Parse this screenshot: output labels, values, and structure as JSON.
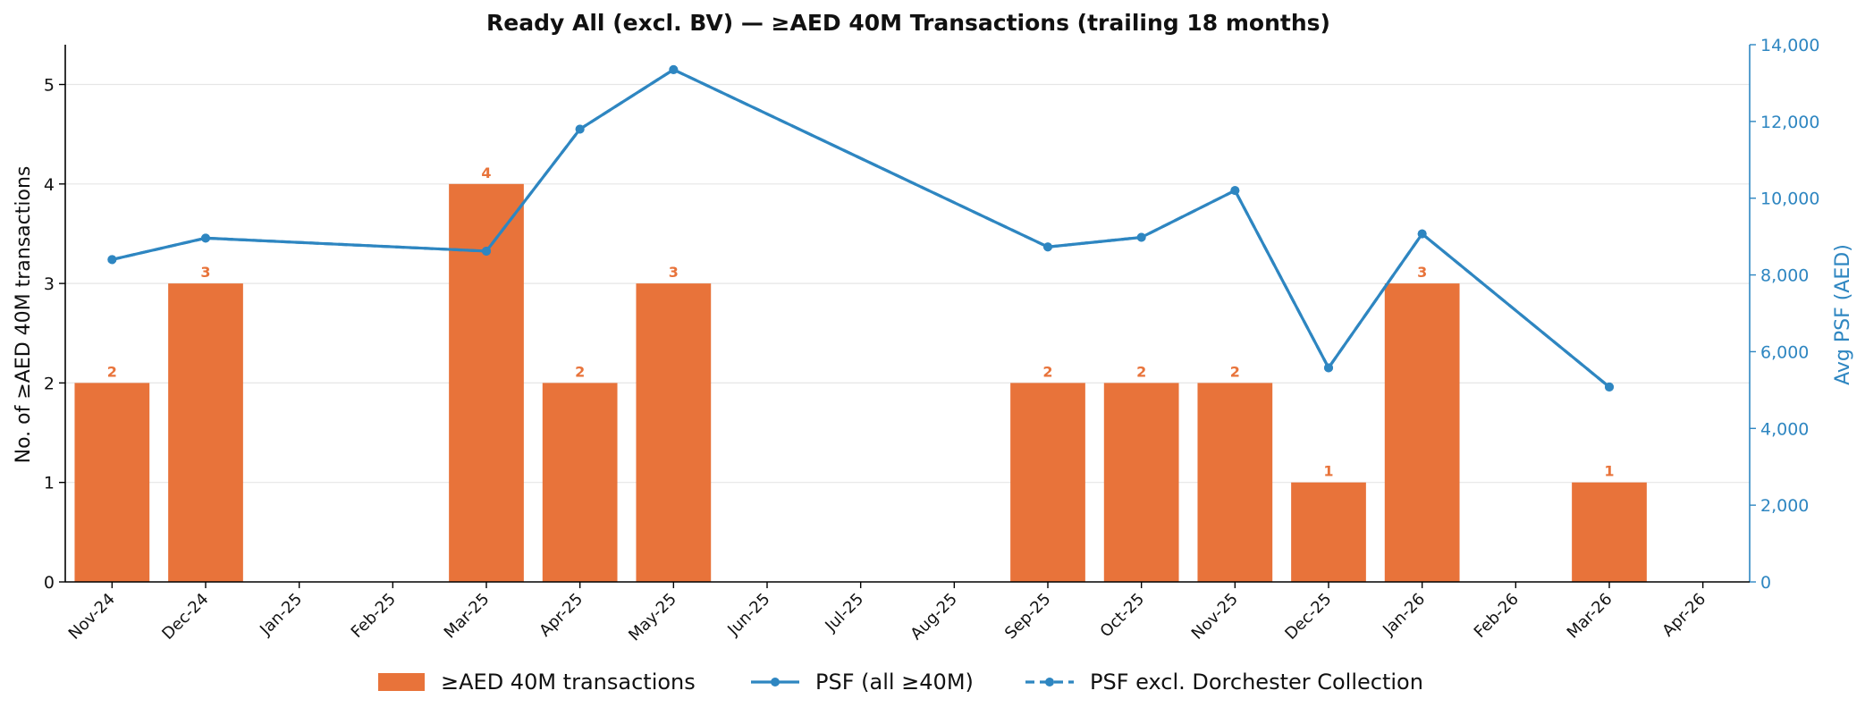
{
  "chart_data": {
    "type": "bar+line",
    "title": "Ready All (excl. BV) — ≥AED 40M Transactions (trailing 18 months)",
    "categories": [
      "Nov-24",
      "Dec-24",
      "Jan-25",
      "Feb-25",
      "Mar-25",
      "Apr-25",
      "May-25",
      "Jun-25",
      "Jul-25",
      "Aug-25",
      "Sep-25",
      "Oct-25",
      "Nov-25",
      "Dec-25",
      "Jan-26",
      "Feb-26",
      "Mar-26",
      "Apr-26"
    ],
    "bar_series": {
      "name": "≥AED 40M transactions",
      "values": [
        2,
        3,
        0,
        0,
        4,
        2,
        3,
        0,
        0,
        0,
        2,
        2,
        2,
        1,
        3,
        0,
        1,
        0
      ],
      "color": "#e8733a"
    },
    "line_series": [
      {
        "name": "PSF (all ≥40M)",
        "values": [
          8400,
          8960,
          null,
          null,
          8620,
          11800,
          13350,
          null,
          null,
          null,
          8730,
          8980,
          10200,
          5580,
          9070,
          null,
          5080,
          null
        ],
        "color": "#2e86c1",
        "style": "solid"
      },
      {
        "name": "PSF excl. Dorchester Collection",
        "values": [
          8400,
          8960,
          null,
          null,
          8620,
          11800,
          13350,
          null,
          null,
          null,
          8730,
          8980,
          10200,
          5580,
          9070,
          null,
          5080,
          null
        ],
        "color": "#2e86c1",
        "style": "dashed"
      }
    ],
    "ylabel_left": "No. of ≥AED 40M transactions",
    "ylabel_right": "Avg PSF (AED)",
    "ylim_left": [
      0,
      5.4
    ],
    "yticks_left": [
      0,
      1,
      2,
      3,
      4,
      5
    ],
    "ylim_right": [
      0,
      14000
    ],
    "yticks_right": [
      0,
      2000,
      4000,
      6000,
      8000,
      10000,
      12000,
      14000
    ],
    "grid": "horizontal",
    "legend_position": "bottom-center"
  }
}
